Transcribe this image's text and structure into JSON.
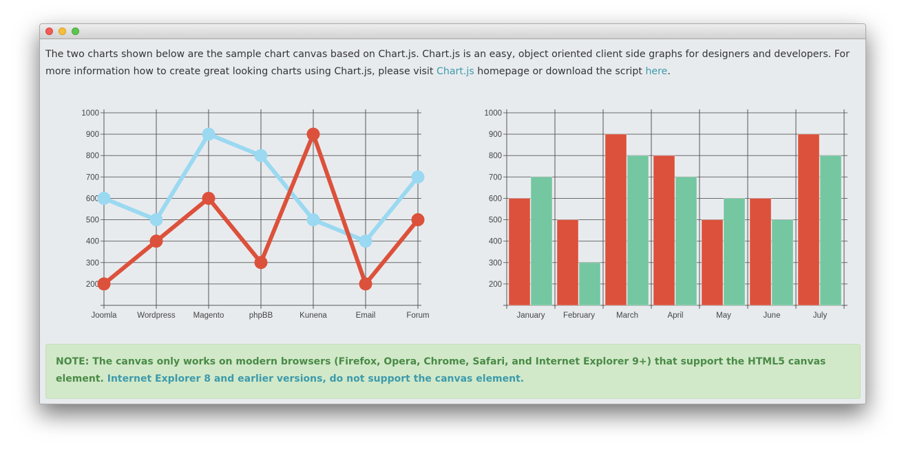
{
  "intro": {
    "text_before": "The two charts shown below are the sample chart canvas based on Chart.js. Chart.js is an easy, object oriented client side graphs for designers and developers. For more information how to create great looking charts using Chart.js, please visit ",
    "chartjs_link": "Chart.js",
    "text_middle": " homepage or download the script ",
    "here_link": "here",
    "text_after": "."
  },
  "note": {
    "text": "NOTE: The canvas only works on modern browsers (Firefox, Opera, Chrome, Safari, and Internet Explorer 9+) that support the HTML5 canvas element. ",
    "link": "Internet Explorer 8 and earlier versions, do not support the canvas element."
  },
  "colors": {
    "red_series": "#dc513b",
    "blue_series": "#9ad9f1",
    "green_series": "#74c7a1",
    "link": "#3d9aab"
  },
  "chart_data": [
    {
      "type": "line",
      "categories": [
        "Joomla",
        "Wordpress",
        "Magento",
        "phpBB",
        "Kunena",
        "Email",
        "Forum"
      ],
      "series": [
        {
          "color": "#9ad9f1",
          "values": [
            600,
            500,
            900,
            800,
            500,
            400,
            700
          ]
        },
        {
          "color": "#dc513b",
          "values": [
            200,
            400,
            600,
            300,
            900,
            200,
            500
          ]
        }
      ],
      "yticks": [
        200,
        300,
        400,
        500,
        600,
        700,
        800,
        900,
        1000
      ],
      "ylim": [
        100,
        1000
      ],
      "grid": true
    },
    {
      "type": "bar",
      "categories": [
        "January",
        "February",
        "March",
        "April",
        "May",
        "June",
        "July"
      ],
      "series": [
        {
          "color": "#dc513b",
          "values": [
            600,
            500,
            900,
            800,
            500,
            600,
            900
          ]
        },
        {
          "color": "#74c7a1",
          "values": [
            700,
            300,
            800,
            700,
            600,
            500,
            800
          ]
        }
      ],
      "yticks": [
        200,
        300,
        400,
        500,
        600,
        700,
        800,
        900,
        1000
      ],
      "ylim": [
        100,
        1000
      ],
      "grid": true
    }
  ]
}
